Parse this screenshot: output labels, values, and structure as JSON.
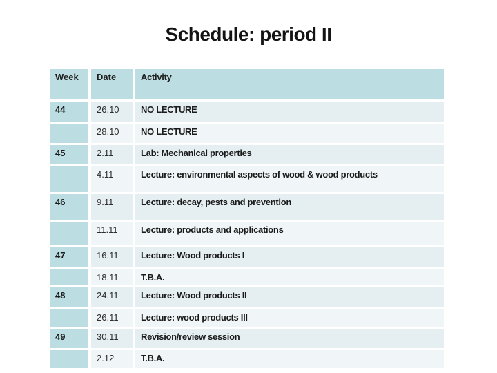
{
  "title": "Schedule: period II",
  "table": {
    "headers": [
      "Week",
      "Date",
      "Activity"
    ],
    "rows": [
      {
        "week": "44",
        "date": "26.10",
        "activity": "NO LECTURE"
      },
      {
        "week": "",
        "date": "28.10",
        "activity": "NO LECTURE"
      },
      {
        "week": "45",
        "date": "2.11",
        "activity": "Lab: Mechanical properties"
      },
      {
        "week": "",
        "date": "4.11",
        "activity": "Lecture: environmental aspects of wood & wood products"
      },
      {
        "week": "46",
        "date": "9.11",
        "activity": "Lecture: decay, pests and prevention"
      },
      {
        "week": "",
        "date": "11.11",
        "activity": "Lecture: products and applications"
      },
      {
        "week": "47",
        "date": "16.11",
        "activity": "Lecture: Wood products I"
      },
      {
        "week": "",
        "date": "18.11",
        "activity": "T.B.A."
      },
      {
        "week": "48",
        "date": "24.11",
        "activity": "Lecture: Wood products II"
      },
      {
        "week": "",
        "date": "26.11",
        "activity": "Lecture: wood products III"
      },
      {
        "week": "49",
        "date": "30.11",
        "activity": "Revision/review session"
      },
      {
        "week": "",
        "date": "2.12",
        "activity": "T.B.A."
      }
    ]
  },
  "colors": {
    "header_bg": "#bcdee2",
    "week_bg": "#bcdee2",
    "row_odd_bg": "#e5eff2",
    "row_even_bg": "#f0f6f8",
    "title_text": "#141414",
    "body_text": "#1b1b1b"
  }
}
